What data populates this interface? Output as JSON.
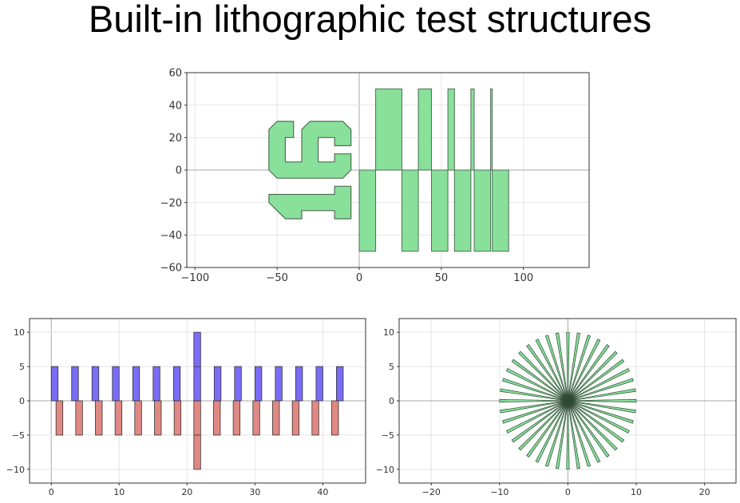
{
  "slide": {
    "title": "Built-in lithographic test structures"
  },
  "colors": {
    "green_fill": "#88e09a",
    "green_edge": "#4f6e55",
    "blue_fill": "#7b6cf7",
    "red_fill": "#e08884",
    "dark_edge": "#333333"
  },
  "chart_data": [
    {
      "type": "polygon",
      "xlim": [
        -105,
        140
      ],
      "ylim": [
        -60,
        60
      ],
      "grid": true,
      "xticks": [
        -100,
        -50,
        0,
        50,
        100
      ],
      "yticks": [
        -60,
        -40,
        -20,
        0,
        20,
        40,
        60
      ],
      "xtick_labels": [
        "−100",
        "−50",
        "0",
        "50",
        "100"
      ],
      "ytick_labels": [
        "−60",
        "−40",
        "−20",
        "0",
        "20",
        "40",
        "60"
      ],
      "rectangles": [
        {
          "x0": 10,
          "x1": 26,
          "y0": 0,
          "y1": 50
        },
        {
          "x0": 36,
          "x1": 44,
          "y0": 0,
          "y1": 50
        },
        {
          "x0": 54,
          "x1": 58,
          "y0": 0,
          "y1": 50
        },
        {
          "x0": 68,
          "x1": 70,
          "y0": 0,
          "y1": 50
        },
        {
          "x0": 80,
          "x1": 81,
          "y0": 0,
          "y1": 50
        },
        {
          "x0": 0,
          "x1": 10,
          "y0": -50,
          "y1": 0
        },
        {
          "x0": 26,
          "x1": 36,
          "y0": -50,
          "y1": 0
        },
        {
          "x0": 44,
          "x1": 54,
          "y0": -50,
          "y1": 0
        },
        {
          "x0": 58,
          "x1": 68,
          "y0": -50,
          "y1": 0
        },
        {
          "x0": 70,
          "x1": 80,
          "y0": -50,
          "y1": 0
        },
        {
          "x0": 81,
          "x1": 91,
          "y0": -50,
          "y1": 0
        }
      ],
      "polygons": [
        {
          "label": "6",
          "points": [
            [
              -55,
              25
            ],
            [
              -50,
              30
            ],
            [
              -40,
              30
            ],
            [
              -40,
              20
            ],
            [
              -45,
              20
            ],
            [
              -45,
              5
            ],
            [
              -35,
              5
            ],
            [
              -35,
              25
            ],
            [
              -30,
              30
            ],
            [
              -10,
              30
            ],
            [
              -5,
              25
            ],
            [
              -5,
              15
            ],
            [
              -15,
              15
            ],
            [
              -15,
              20
            ],
            [
              -25,
              20
            ],
            [
              -25,
              5
            ],
            [
              -15,
              5
            ],
            [
              -15,
              10
            ],
            [
              -5,
              10
            ],
            [
              -5,
              0
            ],
            [
              -10,
              -5
            ],
            [
              -50,
              -5
            ],
            [
              -55,
              0
            ]
          ]
        },
        {
          "label": "1",
          "points": [
            [
              -55,
              -15
            ],
            [
              -15,
              -15
            ],
            [
              -15,
              -10
            ],
            [
              -5,
              -10
            ],
            [
              -5,
              -30
            ],
            [
              -15,
              -30
            ],
            [
              -15,
              -25
            ],
            [
              -35,
              -25
            ],
            [
              -35,
              -30
            ],
            [
              -45,
              -30
            ],
            [
              -55,
              -20
            ]
          ]
        }
      ]
    },
    {
      "type": "bar",
      "xlim": [
        -3.2,
        46.3
      ],
      "ylim": [
        -12,
        12
      ],
      "grid": true,
      "xticks": [
        0,
        10,
        20,
        30,
        40
      ],
      "yticks": [
        -10,
        -5,
        0,
        5,
        10
      ],
      "xtick_labels": [
        "0",
        "10",
        "20",
        "30",
        "40"
      ],
      "ytick_labels": [
        "−10",
        "−5",
        "0",
        "5",
        "10"
      ],
      "series": [
        {
          "color": "blue",
          "width": 1,
          "x": [
            0,
            3,
            6,
            9,
            12,
            15,
            18,
            21,
            24,
            27,
            30,
            33,
            36,
            39,
            42
          ],
          "values": [
            5,
            5,
            5,
            5,
            5,
            5,
            5,
            10,
            5,
            5,
            5,
            5,
            5,
            5,
            5
          ]
        },
        {
          "color": "red",
          "width": 1,
          "x": [
            0.7,
            3.6,
            6.5,
            9.4,
            12.3,
            15.2,
            18.1,
            21,
            23.9,
            26.8,
            29.7,
            32.6,
            35.5,
            38.4,
            41.3
          ],
          "values": [
            -5,
            -5,
            -5,
            -5,
            -5,
            -5,
            -5,
            -10,
            -5,
            -5,
            -5,
            -5,
            -5,
            -5,
            -5
          ]
        }
      ]
    },
    {
      "type": "starburst",
      "xlim": [
        -24.7,
        24.6
      ],
      "ylim": [
        -12,
        12
      ],
      "grid": true,
      "xticks": [
        -20,
        -10,
        0,
        10,
        20
      ],
      "yticks": [
        -10,
        -5,
        0,
        5,
        10
      ],
      "xtick_labels": [
        "−20",
        "−10",
        "0",
        "10",
        "20"
      ],
      "ytick_labels": [
        "−10",
        "−5",
        "0",
        "5",
        "10"
      ],
      "spokes": 40,
      "spoke_length": 10,
      "spoke_width": 0.4
    }
  ]
}
